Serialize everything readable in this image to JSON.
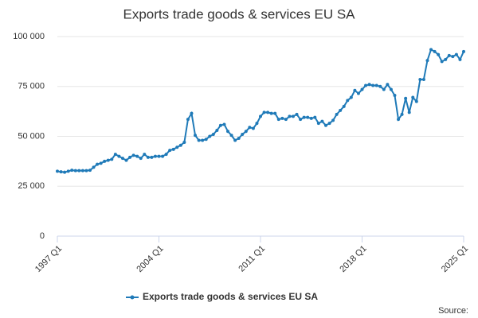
{
  "chart_data": {
    "type": "line",
    "title": "Exports trade goods & services EU SA",
    "categories": [
      "1997 Q1",
      null,
      null,
      null,
      null,
      null,
      null,
      null,
      null,
      null,
      null,
      null,
      null,
      null,
      null,
      null,
      null,
      null,
      null,
      null,
      null,
      null,
      null,
      null,
      null,
      null,
      null,
      null,
      "2004 Q1",
      null,
      null,
      null,
      null,
      null,
      null,
      null,
      null,
      null,
      null,
      null,
      null,
      null,
      null,
      null,
      null,
      null,
      null,
      null,
      null,
      null,
      null,
      null,
      null,
      null,
      null,
      null,
      "2011 Q1",
      null,
      null,
      null,
      null,
      null,
      null,
      null,
      null,
      null,
      null,
      null,
      null,
      null,
      null,
      null,
      null,
      null,
      null,
      null,
      null,
      null,
      null,
      null,
      null,
      null,
      null,
      null,
      "2018 Q1",
      null,
      null,
      null,
      null,
      null,
      null,
      null,
      null,
      null,
      null,
      null,
      null,
      null,
      null,
      null,
      null,
      null,
      null,
      null,
      null,
      null,
      null,
      null,
      null,
      null,
      null,
      null,
      "2025 Q1"
    ],
    "series": [
      {
        "name": "Exports trade goods & services EU SA",
        "color": "#1f7ab8",
        "values": [
          32500,
          32200,
          32000,
          32500,
          33000,
          32800,
          32800,
          32800,
          32800,
          33000,
          34500,
          36000,
          36500,
          37500,
          38000,
          38500,
          41000,
          40000,
          39000,
          38000,
          39500,
          40500,
          40000,
          39000,
          41000,
          39500,
          39500,
          40000,
          40000,
          40000,
          41000,
          43000,
          43500,
          44500,
          45500,
          47000,
          58500,
          61500,
          50500,
          48000,
          48000,
          48500,
          50000,
          51000,
          53000,
          55500,
          56000,
          52500,
          50500,
          48000,
          49000,
          51000,
          52500,
          54500,
          54000,
          56500,
          60000,
          62000,
          62000,
          61500,
          61500,
          58500,
          59000,
          58500,
          60000,
          60000,
          61000,
          58500,
          59500,
          59500,
          59000,
          59500,
          56500,
          57500,
          55500,
          56500,
          58000,
          61000,
          63000,
          65000,
          68000,
          69500,
          73000,
          71500,
          73500,
          75500,
          76000,
          75500,
          75500,
          75000,
          73500,
          76000,
          73500,
          70500,
          58500,
          61000,
          69000,
          62000,
          69500,
          67500,
          78500,
          78500,
          88000,
          93500,
          92500,
          91000,
          87500,
          88500,
          90500,
          90000,
          91000,
          88500,
          92500
        ]
      }
    ],
    "ylim": [
      0,
      100000
    ],
    "yticks": [
      0,
      {
        "value": 25000,
        "label": "25 000"
      },
      {
        "value": 50000,
        "label": "50 000"
      },
      {
        "value": 75000,
        "label": "75 000"
      },
      {
        "value": 100000,
        "label": "100 000"
      }
    ],
    "grid": true,
    "legend": "bottom",
    "source": "Source:"
  }
}
